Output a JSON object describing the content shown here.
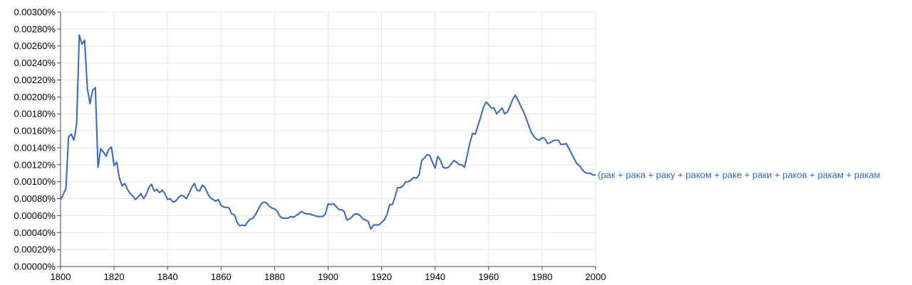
{
  "chart_data": {
    "type": "line",
    "title": "",
    "xlabel": "",
    "ylabel": "",
    "xlim": [
      1800,
      2000
    ],
    "ylim": [
      0,
      0.003
    ],
    "grid": true,
    "legend": "inline-right",
    "x_ticks": [
      "1800",
      "1820",
      "1840",
      "1860",
      "1880",
      "1900",
      "1920",
      "1940",
      "1960",
      "1980",
      "2000"
    ],
    "y_ticks": [
      "0.00000%",
      "0.00020%",
      "0.00040%",
      "0.00060%",
      "0.00080%",
      "0.00100%",
      "0.00120%",
      "0.00140%",
      "0.00160%",
      "0.00180%",
      "0.00200%",
      "0.00220%",
      "0.00240%",
      "0.00260%",
      "0.00280%",
      "0.00300%"
    ],
    "series": [
      {
        "name": "(рак + рака + раку + раком + раке + раки + раков + ракам + ракам",
        "color": "#3366cc",
        "x": [
          1800,
          1801,
          1802,
          1803,
          1804,
          1805,
          1806,
          1807,
          1808,
          1809,
          1810,
          1811,
          1812,
          1813,
          1814,
          1815,
          1816,
          1817,
          1818,
          1819,
          1820,
          1821,
          1822,
          1823,
          1824,
          1825,
          1826,
          1827,
          1828,
          1829,
          1830,
          1831,
          1832,
          1833,
          1834,
          1835,
          1836,
          1837,
          1838,
          1839,
          1840,
          1841,
          1842,
          1843,
          1844,
          1845,
          1846,
          1847,
          1848,
          1849,
          1850,
          1851,
          1852,
          1853,
          1854,
          1855,
          1856,
          1857,
          1858,
          1859,
          1860,
          1861,
          1862,
          1863,
          1864,
          1865,
          1866,
          1867,
          1868,
          1869,
          1870,
          1871,
          1872,
          1873,
          1874,
          1875,
          1876,
          1877,
          1878,
          1879,
          1880,
          1881,
          1882,
          1883,
          1884,
          1885,
          1886,
          1887,
          1888,
          1889,
          1890,
          1891,
          1892,
          1893,
          1894,
          1895,
          1896,
          1897,
          1898,
          1899,
          1900,
          1901,
          1902,
          1903,
          1904,
          1905,
          1906,
          1907,
          1908,
          1909,
          1910,
          1911,
          1912,
          1913,
          1914,
          1915,
          1916,
          1917,
          1918,
          1919,
          1920,
          1921,
          1922,
          1923,
          1924,
          1925,
          1926,
          1927,
          1928,
          1929,
          1930,
          1931,
          1932,
          1933,
          1934,
          1935,
          1936,
          1937,
          1938,
          1939,
          1940,
          1941,
          1942,
          1943,
          1944,
          1945,
          1946,
          1947,
          1948,
          1949,
          1950,
          1951,
          1952,
          1953,
          1954,
          1955,
          1956,
          1957,
          1958,
          1959,
          1960,
          1961,
          1962,
          1963,
          1964,
          1965,
          1966,
          1967,
          1968,
          1969,
          1970,
          1971,
          1972,
          1973,
          1974,
          1975,
          1976,
          1977,
          1978,
          1979,
          1980,
          1981,
          1982,
          1983,
          1984,
          1985,
          1986,
          1987,
          1988,
          1989,
          1990,
          1991,
          1992,
          1993,
          1994,
          1995,
          1996,
          1997,
          1998,
          1999,
          2000
        ],
        "values": [
          0.00079,
          0.00085,
          0.00092,
          0.00153,
          0.00156,
          0.00149,
          0.00168,
          0.00273,
          0.00262,
          0.00267,
          0.0021,
          0.00192,
          0.00208,
          0.00211,
          0.00117,
          0.00139,
          0.00135,
          0.0013,
          0.00138,
          0.00141,
          0.00119,
          0.00123,
          0.00104,
          0.00095,
          0.00098,
          0.00091,
          0.00086,
          0.00083,
          0.00079,
          0.00082,
          0.00086,
          0.0008,
          0.00085,
          0.00093,
          0.00097,
          0.00089,
          0.00091,
          0.00087,
          0.0009,
          0.00086,
          0.00079,
          0.0008,
          0.00076,
          0.00077,
          0.00081,
          0.00084,
          0.00083,
          0.0008,
          0.00086,
          0.00093,
          0.00098,
          0.0009,
          0.00089,
          0.00096,
          0.00093,
          0.00086,
          0.00081,
          0.00079,
          0.00077,
          0.00079,
          0.00072,
          0.0007,
          0.0007,
          0.00069,
          0.00062,
          0.00061,
          0.00052,
          0.00048,
          0.00049,
          0.00048,
          0.00053,
          0.00056,
          0.00057,
          0.00062,
          0.00068,
          0.00074,
          0.00076,
          0.00075,
          0.00071,
          0.00069,
          0.00068,
          0.00065,
          0.00059,
          0.00057,
          0.00057,
          0.00057,
          0.00059,
          0.00058,
          0.0006,
          0.00062,
          0.00065,
          0.00063,
          0.00062,
          0.00062,
          0.00061,
          0.0006,
          0.00059,
          0.00059,
          0.00059,
          0.00062,
          0.00074,
          0.00073,
          0.00074,
          0.00071,
          0.00067,
          0.00067,
          0.00065,
          0.00055,
          0.00056,
          0.00059,
          0.00062,
          0.00062,
          0.0006,
          0.00056,
          0.00055,
          0.00053,
          0.00044,
          0.00049,
          0.00049,
          0.00049,
          0.00052,
          0.00055,
          0.00061,
          0.00073,
          0.00073,
          0.00082,
          0.00093,
          0.00093,
          0.00095,
          0.001,
          0.001,
          0.00102,
          0.00105,
          0.00104,
          0.00108,
          0.00125,
          0.00128,
          0.00132,
          0.00131,
          0.00123,
          0.00116,
          0.0013,
          0.00125,
          0.00117,
          0.00116,
          0.00117,
          0.00121,
          0.00125,
          0.00123,
          0.0012,
          0.0012,
          0.00117,
          0.00131,
          0.00146,
          0.00157,
          0.00156,
          0.00166,
          0.00176,
          0.00187,
          0.00194,
          0.00191,
          0.00187,
          0.00187,
          0.0018,
          0.00183,
          0.00187,
          0.0018,
          0.00182,
          0.00189,
          0.00197,
          0.00202,
          0.00196,
          0.00189,
          0.00183,
          0.00175,
          0.00166,
          0.00158,
          0.00153,
          0.0015,
          0.00149,
          0.00152,
          0.00151,
          0.00145,
          0.00146,
          0.00148,
          0.00149,
          0.00149,
          0.00144,
          0.00144,
          0.00145,
          0.00139,
          0.00133,
          0.00127,
          0.00121,
          0.00119,
          0.00114,
          0.00111,
          0.0011,
          0.0011,
          0.00108,
          0.00108
        ]
      }
    ]
  }
}
